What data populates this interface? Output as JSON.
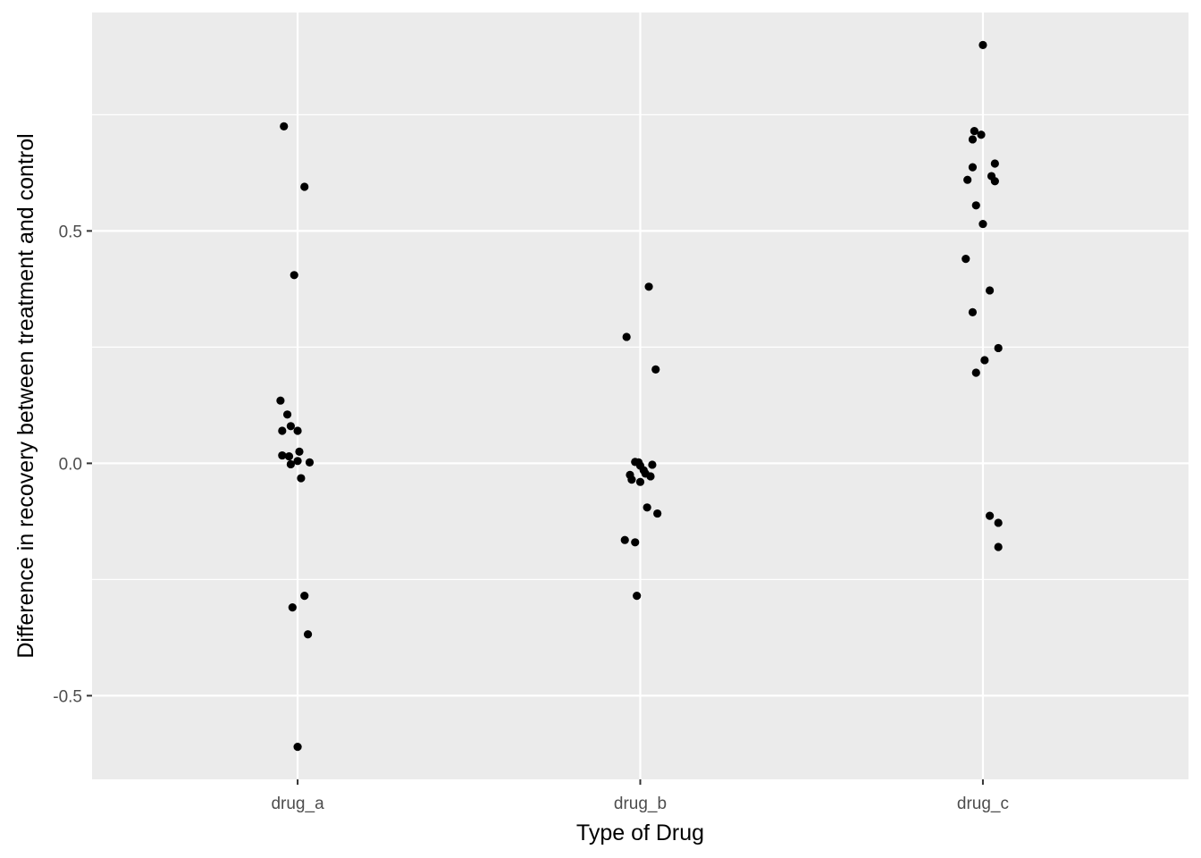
{
  "chart_data": {
    "type": "scatter",
    "title": "",
    "xlabel": "Type of Drug",
    "ylabel": "Difference in recovery between treatment and control",
    "categories": [
      "drug_a",
      "drug_b",
      "drug_c"
    ],
    "ylim": [
      -0.68,
      0.97
    ],
    "yticks": [
      -0.5,
      0.0,
      0.5
    ],
    "ytick_labels": [
      "-0.5",
      "0.0",
      "0.5"
    ],
    "grid": true,
    "legend": "none",
    "background_color": "#ebebeb",
    "gridline_color": "#ffffff",
    "point_color": "#000000",
    "points": [
      {
        "category": "drug_a",
        "jitter": -0.04,
        "y": 0.725
      },
      {
        "category": "drug_a",
        "jitter": 0.02,
        "y": 0.595
      },
      {
        "category": "drug_a",
        "jitter": -0.01,
        "y": 0.405
      },
      {
        "category": "drug_a",
        "jitter": -0.05,
        "y": 0.135
      },
      {
        "category": "drug_a",
        "jitter": -0.03,
        "y": 0.105
      },
      {
        "category": "drug_a",
        "jitter": -0.02,
        "y": 0.08
      },
      {
        "category": "drug_a",
        "jitter": -0.045,
        "y": 0.07
      },
      {
        "category": "drug_a",
        "jitter": 0.0,
        "y": 0.07
      },
      {
        "category": "drug_a",
        "jitter": 0.005,
        "y": 0.025
      },
      {
        "category": "drug_a",
        "jitter": -0.045,
        "y": 0.017
      },
      {
        "category": "drug_a",
        "jitter": -0.025,
        "y": 0.015
      },
      {
        "category": "drug_a",
        "jitter": 0.0,
        "y": 0.005
      },
      {
        "category": "drug_a",
        "jitter": 0.035,
        "y": 0.002
      },
      {
        "category": "drug_a",
        "jitter": -0.02,
        "y": -0.002
      },
      {
        "category": "drug_a",
        "jitter": 0.01,
        "y": -0.032
      },
      {
        "category": "drug_a",
        "jitter": 0.02,
        "y": -0.285
      },
      {
        "category": "drug_a",
        "jitter": -0.015,
        "y": -0.31
      },
      {
        "category": "drug_a",
        "jitter": 0.03,
        "y": -0.368
      },
      {
        "category": "drug_a",
        "jitter": 0.0,
        "y": -0.61
      },
      {
        "category": "drug_b",
        "jitter": 0.025,
        "y": 0.38
      },
      {
        "category": "drug_b",
        "jitter": -0.04,
        "y": 0.272
      },
      {
        "category": "drug_b",
        "jitter": 0.045,
        "y": 0.202
      },
      {
        "category": "drug_b",
        "jitter": -0.015,
        "y": 0.003
      },
      {
        "category": "drug_b",
        "jitter": -0.005,
        "y": 0.002
      },
      {
        "category": "drug_b",
        "jitter": 0.0,
        "y": -0.005
      },
      {
        "category": "drug_b",
        "jitter": 0.035,
        "y": -0.003
      },
      {
        "category": "drug_b",
        "jitter": 0.01,
        "y": -0.015
      },
      {
        "category": "drug_b",
        "jitter": 0.015,
        "y": -0.022
      },
      {
        "category": "drug_b",
        "jitter": 0.03,
        "y": -0.028
      },
      {
        "category": "drug_b",
        "jitter": -0.03,
        "y": -0.025
      },
      {
        "category": "drug_b",
        "jitter": -0.025,
        "y": -0.035
      },
      {
        "category": "drug_b",
        "jitter": 0.0,
        "y": -0.04
      },
      {
        "category": "drug_b",
        "jitter": 0.02,
        "y": -0.095
      },
      {
        "category": "drug_b",
        "jitter": 0.05,
        "y": -0.108
      },
      {
        "category": "drug_b",
        "jitter": -0.045,
        "y": -0.165
      },
      {
        "category": "drug_b",
        "jitter": -0.015,
        "y": -0.17
      },
      {
        "category": "drug_b",
        "jitter": -0.01,
        "y": -0.285
      },
      {
        "category": "drug_c",
        "jitter": 0.0,
        "y": 0.9
      },
      {
        "category": "drug_c",
        "jitter": -0.025,
        "y": 0.715
      },
      {
        "category": "drug_c",
        "jitter": -0.005,
        "y": 0.707
      },
      {
        "category": "drug_c",
        "jitter": -0.03,
        "y": 0.697
      },
      {
        "category": "drug_c",
        "jitter": 0.035,
        "y": 0.645
      },
      {
        "category": "drug_c",
        "jitter": -0.03,
        "y": 0.637
      },
      {
        "category": "drug_c",
        "jitter": 0.025,
        "y": 0.618
      },
      {
        "category": "drug_c",
        "jitter": -0.045,
        "y": 0.61
      },
      {
        "category": "drug_c",
        "jitter": 0.035,
        "y": 0.607
      },
      {
        "category": "drug_c",
        "jitter": -0.02,
        "y": 0.555
      },
      {
        "category": "drug_c",
        "jitter": 0.0,
        "y": 0.515
      },
      {
        "category": "drug_c",
        "jitter": -0.05,
        "y": 0.44
      },
      {
        "category": "drug_c",
        "jitter": 0.02,
        "y": 0.372
      },
      {
        "category": "drug_c",
        "jitter": -0.03,
        "y": 0.325
      },
      {
        "category": "drug_c",
        "jitter": 0.045,
        "y": 0.248
      },
      {
        "category": "drug_c",
        "jitter": 0.005,
        "y": 0.222
      },
      {
        "category": "drug_c",
        "jitter": -0.02,
        "y": 0.195
      },
      {
        "category": "drug_c",
        "jitter": 0.02,
        "y": -0.113
      },
      {
        "category": "drug_c",
        "jitter": 0.045,
        "y": -0.128
      },
      {
        "category": "drug_c",
        "jitter": 0.045,
        "y": -0.18
      }
    ]
  }
}
